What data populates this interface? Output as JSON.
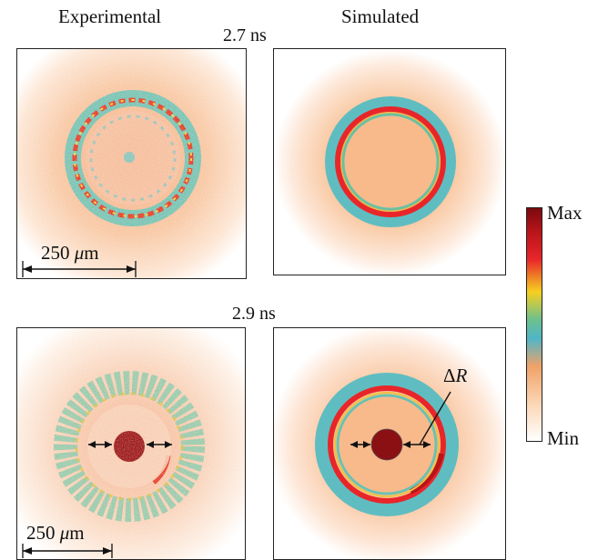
{
  "headers": {
    "left": "Experimental",
    "right": "Simulated"
  },
  "times": {
    "top": "2.7 ns",
    "bottom": "2.9 ns"
  },
  "scale_bar": {
    "value": "250",
    "unit_symbol": "μ",
    "unit_suffix": "m"
  },
  "delta_r": {
    "symbol": "Δ",
    "letter": "R"
  },
  "colorbar": {
    "max_label": "Max",
    "min_label": "Min",
    "colors": [
      "#7a0a0e",
      "#e8262a",
      "#f6d020",
      "#4fb6c8",
      "#f0a268",
      "#ffffff"
    ]
  }
}
